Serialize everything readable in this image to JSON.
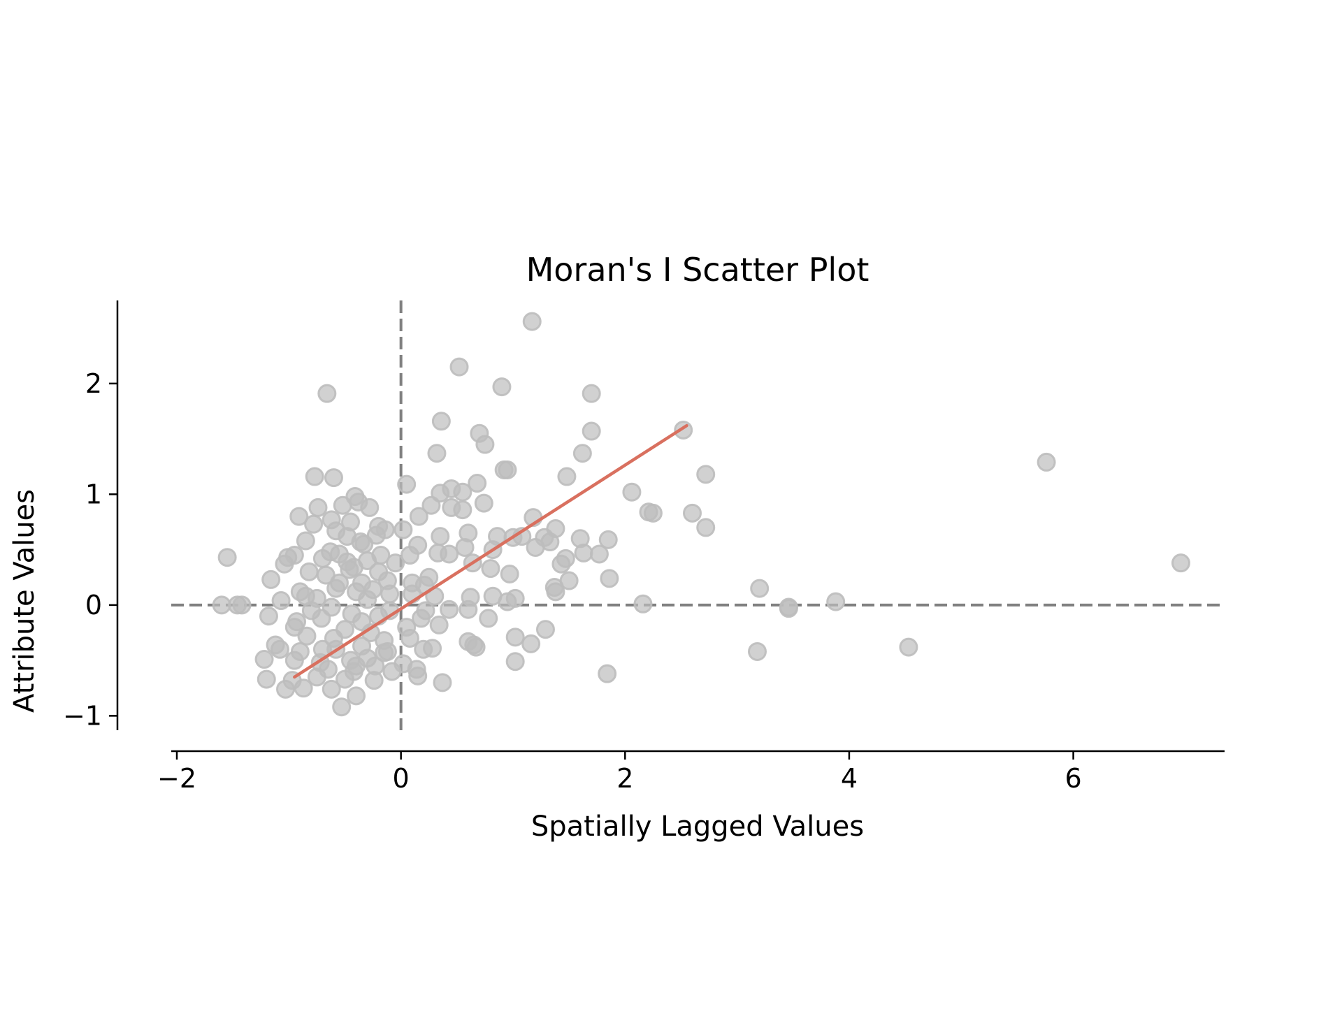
{
  "chart_data": {
    "type": "scatter",
    "title": "Moran's I Scatter Plot",
    "xlabel": "Spatially Lagged Values",
    "ylabel": "Attribute Values",
    "xlim": [
      -2.05,
      7.35
    ],
    "ylim": [
      -1.13,
      2.75
    ],
    "xticks": [
      {
        "value": -2,
        "label": "−2"
      },
      {
        "value": 0,
        "label": "0"
      },
      {
        "value": 2,
        "label": "2"
      },
      {
        "value": 4,
        "label": "4"
      },
      {
        "value": 6,
        "label": "6"
      }
    ],
    "yticks": [
      {
        "value": -1,
        "label": "−1"
      },
      {
        "value": 0,
        "label": "0"
      },
      {
        "value": 1,
        "label": "1"
      },
      {
        "value": 2,
        "label": "2"
      }
    ],
    "grid": false,
    "reference_lines": {
      "vertical_x": 0,
      "horizontal_y": 0,
      "style": "dashed",
      "color": "#808080"
    },
    "regression_line": {
      "color": "#d9705f",
      "points": [
        [
          -0.95,
          -0.65
        ],
        [
          2.55,
          1.62
        ]
      ]
    },
    "point_color": "#bdbdbd",
    "series": [
      {
        "points": [
          [
            1.17,
            2.56
          ],
          [
            0.52,
            2.15
          ],
          [
            -0.66,
            1.91
          ],
          [
            0.9,
            1.97
          ],
          [
            1.7,
            1.91
          ],
          [
            0.36,
            1.66
          ],
          [
            0.7,
            1.55
          ],
          [
            1.7,
            1.57
          ],
          [
            0.75,
            1.45
          ],
          [
            0.32,
            1.37
          ],
          [
            1.62,
            1.37
          ],
          [
            2.52,
            1.58
          ],
          [
            0.92,
            1.22
          ],
          [
            0.95,
            1.22
          ],
          [
            1.48,
            1.16
          ],
          [
            2.72,
            1.18
          ],
          [
            -0.77,
            1.16
          ],
          [
            -0.6,
            1.15
          ],
          [
            0.05,
            1.09
          ],
          [
            0.68,
            1.1
          ],
          [
            2.06,
            1.02
          ],
          [
            0.45,
            1.05
          ],
          [
            0.55,
            1.02
          ],
          [
            0.35,
            1.01
          ],
          [
            -0.41,
            0.98
          ],
          [
            -0.38,
            0.93
          ],
          [
            0.74,
            0.92
          ],
          [
            0.27,
            0.9
          ],
          [
            0.45,
            0.88
          ],
          [
            -0.28,
            0.88
          ],
          [
            -0.52,
            0.9
          ],
          [
            -0.74,
            0.88
          ],
          [
            0.55,
            0.86
          ],
          [
            2.21,
            0.84
          ],
          [
            2.25,
            0.83
          ],
          [
            2.6,
            0.83
          ],
          [
            -0.91,
            0.8
          ],
          [
            0.16,
            0.8
          ],
          [
            1.18,
            0.79
          ],
          [
            -0.45,
            0.75
          ],
          [
            -0.62,
            0.77
          ],
          [
            -0.78,
            0.73
          ],
          [
            -0.2,
            0.71
          ],
          [
            2.72,
            0.7
          ],
          [
            1.38,
            0.69
          ],
          [
            -0.14,
            0.68
          ],
          [
            0.02,
            0.68
          ],
          [
            -0.58,
            0.67
          ],
          [
            0.6,
            0.65
          ],
          [
            0.86,
            0.62
          ],
          [
            1.0,
            0.61
          ],
          [
            -0.22,
            0.63
          ],
          [
            0.35,
            0.62
          ],
          [
            1.08,
            0.62
          ],
          [
            1.28,
            0.61
          ],
          [
            1.6,
            0.6
          ],
          [
            1.85,
            0.59
          ],
          [
            -0.85,
            0.58
          ],
          [
            -0.36,
            0.57
          ],
          [
            1.33,
            0.57
          ],
          [
            0.15,
            0.54
          ],
          [
            0.57,
            0.52
          ],
          [
            1.2,
            0.52
          ],
          [
            0.82,
            0.5
          ],
          [
            -0.63,
            0.48
          ],
          [
            -0.55,
            0.46
          ],
          [
            0.33,
            0.47
          ],
          [
            0.43,
            0.46
          ],
          [
            -0.95,
            0.45
          ],
          [
            -1.01,
            0.43
          ],
          [
            1.77,
            0.46
          ],
          [
            1.63,
            0.47
          ],
          [
            0.08,
            0.45
          ],
          [
            1.47,
            0.42
          ],
          [
            -1.55,
            0.43
          ],
          [
            -0.3,
            0.4
          ],
          [
            -0.48,
            0.39
          ],
          [
            1.43,
            0.37
          ],
          [
            0.64,
            0.38
          ],
          [
            -0.05,
            0.38
          ],
          [
            -1.04,
            0.37
          ],
          [
            0.8,
            0.33
          ],
          [
            0.97,
            0.28
          ],
          [
            -0.42,
            0.34
          ],
          [
            -0.82,
            0.3
          ],
          [
            0.25,
            0.25
          ],
          [
            -0.67,
            0.27
          ],
          [
            1.86,
            0.24
          ],
          [
            1.5,
            0.22
          ],
          [
            -0.12,
            0.22
          ],
          [
            -1.16,
            0.23
          ],
          [
            -0.35,
            0.2
          ],
          [
            0.21,
            0.18
          ],
          [
            1.37,
            0.16
          ],
          [
            1.38,
            0.12
          ],
          [
            3.2,
            0.15
          ],
          [
            -0.58,
            0.15
          ],
          [
            -0.9,
            0.12
          ],
          [
            0.1,
            0.1
          ],
          [
            0.62,
            0.07
          ],
          [
            0.82,
            0.08
          ],
          [
            1.02,
            0.06
          ],
          [
            -0.3,
            0.05
          ],
          [
            -0.75,
            0.06
          ],
          [
            -1.07,
            0.04
          ],
          [
            -1.42,
            0.0
          ],
          [
            -1.6,
            0.0
          ],
          [
            -1.46,
            0.0
          ],
          [
            0.95,
            0.03
          ],
          [
            2.16,
            0.01
          ],
          [
            3.88,
            0.03
          ],
          [
            3.46,
            -0.02
          ],
          [
            3.46,
            -0.03
          ],
          [
            0.43,
            -0.04
          ],
          [
            0.6,
            -0.04
          ],
          [
            -0.1,
            -0.05
          ],
          [
            -0.2,
            -0.1
          ],
          [
            -0.44,
            -0.08
          ],
          [
            -0.71,
            -0.12
          ],
          [
            -0.93,
            -0.15
          ],
          [
            -1.18,
            -0.1
          ],
          [
            0.18,
            -0.12
          ],
          [
            0.34,
            -0.18
          ],
          [
            0.78,
            -0.12
          ],
          [
            0.05,
            -0.2
          ],
          [
            -0.5,
            -0.22
          ],
          [
            -0.27,
            -0.25
          ],
          [
            -0.6,
            -0.3
          ],
          [
            -0.84,
            -0.28
          ],
          [
            1.29,
            -0.22
          ],
          [
            -1.12,
            -0.36
          ],
          [
            -1.08,
            -0.4
          ],
          [
            -0.9,
            -0.42
          ],
          [
            -0.58,
            -0.4
          ],
          [
            -0.35,
            -0.37
          ],
          [
            -0.15,
            -0.43
          ],
          [
            0.2,
            -0.4
          ],
          [
            0.28,
            -0.39
          ],
          [
            0.6,
            -0.33
          ],
          [
            0.65,
            -0.36
          ],
          [
            0.67,
            -0.38
          ],
          [
            1.02,
            -0.29
          ],
          [
            1.16,
            -0.35
          ],
          [
            3.18,
            -0.42
          ],
          [
            4.53,
            -0.38
          ],
          [
            -1.22,
            -0.49
          ],
          [
            -0.95,
            -0.5
          ],
          [
            -0.72,
            -0.52
          ],
          [
            -0.45,
            -0.5
          ],
          [
            -0.23,
            -0.55
          ],
          [
            0.02,
            -0.53
          ],
          [
            0.14,
            -0.58
          ],
          [
            1.02,
            -0.51
          ],
          [
            -0.65,
            -0.58
          ],
          [
            -0.42,
            -0.6
          ],
          [
            -0.08,
            -0.6
          ],
          [
            1.84,
            -0.62
          ],
          [
            -1.2,
            -0.67
          ],
          [
            -0.97,
            -0.68
          ],
          [
            -0.5,
            -0.67
          ],
          [
            -0.24,
            -0.68
          ],
          [
            0.15,
            -0.64
          ],
          [
            0.37,
            -0.7
          ],
          [
            -1.03,
            -0.76
          ],
          [
            -0.87,
            -0.75
          ],
          [
            -0.62,
            -0.76
          ],
          [
            -0.4,
            -0.82
          ],
          [
            -0.53,
            -0.92
          ],
          [
            5.76,
            1.29
          ],
          [
            6.96,
            0.38
          ],
          [
            -0.7,
            0.42
          ],
          [
            -0.33,
            0.55
          ],
          [
            -0.46,
            0.32
          ],
          [
            -0.2,
            0.3
          ],
          [
            -0.55,
            0.2
          ],
          [
            -0.4,
            0.12
          ],
          [
            -0.25,
            0.14
          ],
          [
            -0.1,
            0.1
          ],
          [
            -0.62,
            -0.02
          ],
          [
            -0.8,
            -0.05
          ],
          [
            -0.35,
            -0.15
          ],
          [
            -0.15,
            -0.32
          ],
          [
            -0.7,
            -0.4
          ],
          [
            -0.3,
            -0.48
          ],
          [
            -0.12,
            -0.42
          ],
          [
            0.08,
            -0.3
          ],
          [
            0.22,
            -0.05
          ],
          [
            0.3,
            0.08
          ],
          [
            -0.48,
            0.62
          ],
          [
            -0.85,
            0.08
          ],
          [
            -0.95,
            -0.2
          ],
          [
            -0.4,
            -0.55
          ],
          [
            -0.75,
            -0.65
          ],
          [
            -0.18,
            0.45
          ],
          [
            0.1,
            0.2
          ]
        ]
      }
    ]
  }
}
